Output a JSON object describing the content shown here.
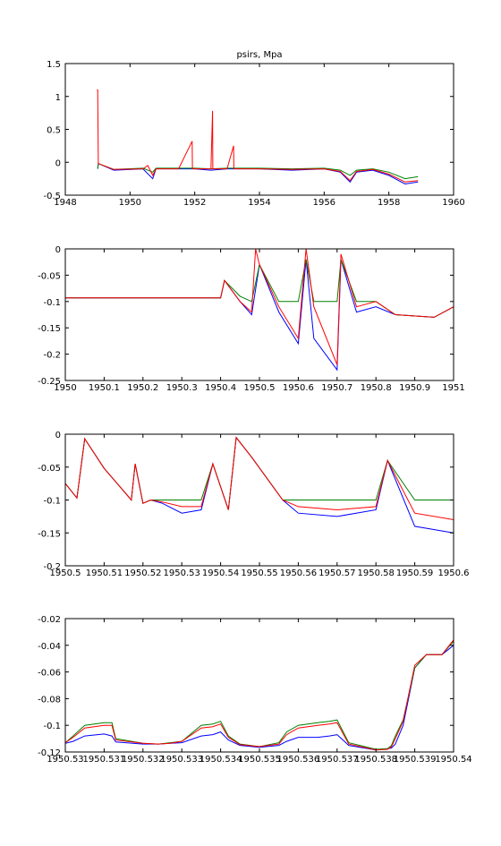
{
  "figure": {
    "title": "psirs, Mpa"
  },
  "colors": {
    "blue": "#0000ff",
    "green": "#008000",
    "red": "#ff0000",
    "axis": "#000000"
  },
  "chart_data": [
    {
      "type": "line",
      "title": "psirs, Mpa",
      "xlim": [
        1948,
        1960
      ],
      "ylim": [
        -0.5,
        1.5
      ],
      "xticks": [
        1948,
        1950,
        1952,
        1954,
        1956,
        1958,
        1960
      ],
      "xtick_labels": [
        "1948",
        "1950",
        "1952",
        "1954",
        "1956",
        "1958",
        "1960"
      ],
      "yticks": [
        -0.5,
        0,
        0.5,
        1,
        1.5
      ],
      "ytick_labels": [
        "-0.5",
        "0",
        "0.5",
        "1",
        "1.5"
      ],
      "series": [
        {
          "color": "blue",
          "x": [
            1949.0,
            1949.02,
            1949.5,
            1950.4,
            1950.7,
            1950.8,
            1951.5,
            1952.0,
            1952.5,
            1953.0,
            1954.0,
            1955.0,
            1956.0,
            1956.5,
            1956.8,
            1957.0,
            1957.5,
            1958.0,
            1958.5,
            1958.9
          ],
          "y": [
            -0.1,
            -0.02,
            -0.12,
            -0.1,
            -0.25,
            -0.1,
            -0.1,
            -0.1,
            -0.12,
            -0.1,
            -0.1,
            -0.12,
            -0.1,
            -0.15,
            -0.3,
            -0.15,
            -0.12,
            -0.2,
            -0.33,
            -0.3
          ]
        },
        {
          "color": "green",
          "x": [
            1949.0,
            1949.02,
            1949.5,
            1950.4,
            1950.7,
            1950.8,
            1951.5,
            1952.0,
            1952.5,
            1953.0,
            1954.0,
            1955.0,
            1956.0,
            1956.5,
            1956.8,
            1957.0,
            1957.5,
            1958.0,
            1958.5,
            1958.9
          ],
          "y": [
            -0.1,
            -0.02,
            -0.11,
            -0.09,
            -0.15,
            -0.09,
            -0.09,
            -0.09,
            -0.1,
            -0.09,
            -0.09,
            -0.1,
            -0.09,
            -0.12,
            -0.2,
            -0.12,
            -0.1,
            -0.15,
            -0.25,
            -0.22
          ]
        },
        {
          "color": "red",
          "x": [
            1948.98,
            1949.0,
            1949.02,
            1949.5,
            1950.4,
            1950.55,
            1950.7,
            1950.8,
            1951.5,
            1951.92,
            1951.93,
            1951.94,
            1952.5,
            1952.55,
            1952.56,
            1952.57,
            1953.0,
            1953.2,
            1953.21,
            1953.22,
            1954.0,
            1955.0,
            1956.0,
            1956.5,
            1956.8,
            1957.0,
            1957.5,
            1958.0,
            1958.5,
            1958.9
          ],
          "y": [
            1.1,
            1.1,
            -0.02,
            -0.11,
            -0.1,
            -0.05,
            -0.2,
            -0.1,
            -0.1,
            0.32,
            -0.1,
            -0.1,
            -0.1,
            0.78,
            -0.1,
            -0.1,
            -0.1,
            0.25,
            -0.1,
            -0.1,
            -0.1,
            -0.11,
            -0.1,
            -0.14,
            -0.28,
            -0.14,
            -0.11,
            -0.18,
            -0.3,
            -0.28
          ]
        }
      ]
    },
    {
      "type": "line",
      "xlim": [
        1950,
        1951
      ],
      "ylim": [
        -0.25,
        0
      ],
      "xticks": [
        1950,
        1950.1,
        1950.2,
        1950.3,
        1950.4,
        1950.5,
        1950.6,
        1950.7,
        1950.8,
        1950.9,
        1951
      ],
      "xtick_labels": [
        "1950",
        "1950.1",
        "1950.2",
        "1950.3",
        "1950.4",
        "1950.5",
        "1950.6",
        "1950.7",
        "1950.8",
        "1950.9",
        "1951"
      ],
      "yticks": [
        -0.25,
        -0.2,
        -0.15,
        -0.1,
        -0.05,
        0
      ],
      "ytick_labels": [
        "-0.25",
        "-0.2",
        "-0.15",
        "-0.1",
        "-0.05",
        "0"
      ],
      "series": [
        {
          "color": "blue",
          "x": [
            1950.0,
            1950.4,
            1950.41,
            1950.45,
            1950.48,
            1950.5,
            1950.55,
            1950.6,
            1950.62,
            1950.64,
            1950.7,
            1950.71,
            1950.75,
            1950.8,
            1950.85,
            1950.95,
            1951.0
          ],
          "y": [
            -0.093,
            -0.093,
            -0.06,
            -0.1,
            -0.125,
            -0.03,
            -0.12,
            -0.18,
            -0.02,
            -0.17,
            -0.23,
            -0.02,
            -0.12,
            -0.11,
            -0.125,
            -0.13,
            -0.11
          ]
        },
        {
          "color": "green",
          "x": [
            1950.0,
            1950.4,
            1950.41,
            1950.45,
            1950.48,
            1950.5,
            1950.55,
            1950.6,
            1950.62,
            1950.64,
            1950.7,
            1950.71,
            1950.75,
            1950.8,
            1950.85,
            1950.95,
            1951.0
          ],
          "y": [
            -0.093,
            -0.093,
            -0.06,
            -0.09,
            -0.1,
            -0.03,
            -0.1,
            -0.1,
            -0.02,
            -0.1,
            -0.1,
            -0.02,
            -0.1,
            -0.1,
            -0.125,
            -0.13,
            -0.11
          ]
        },
        {
          "color": "red",
          "x": [
            1950.0,
            1950.4,
            1950.41,
            1950.45,
            1950.48,
            1950.49,
            1950.5,
            1950.55,
            1950.6,
            1950.62,
            1950.64,
            1950.7,
            1950.71,
            1950.75,
            1950.8,
            1950.85,
            1950.95,
            1951.0
          ],
          "y": [
            -0.093,
            -0.093,
            -0.06,
            -0.1,
            -0.12,
            0,
            -0.03,
            -0.11,
            -0.17,
            0,
            -0.11,
            -0.22,
            -0.01,
            -0.11,
            -0.1,
            -0.125,
            -0.13,
            -0.11
          ]
        }
      ]
    },
    {
      "type": "line",
      "xlim": [
        1950.5,
        1950.6
      ],
      "ylim": [
        -0.2,
        0
      ],
      "xticks": [
        1950.5,
        1950.51,
        1950.52,
        1950.53,
        1950.54,
        1950.55,
        1950.56,
        1950.57,
        1950.58,
        1950.59,
        1950.6
      ],
      "xtick_labels": [
        "1950.5",
        "1950.51",
        "1950.52",
        "1950.53",
        "1950.54",
        "1950.55",
        "1950.56",
        "1950.57",
        "1950.58",
        "1950.59",
        "1950.6"
      ],
      "yticks": [
        -0.2,
        -0.15,
        -0.1,
        -0.05,
        0
      ],
      "ytick_labels": [
        "-0.2",
        "-0.15",
        "-0.1",
        "-0.05",
        "0"
      ],
      "series": [
        {
          "color": "blue",
          "x": [
            1950.5,
            1950.503,
            1950.505,
            1950.51,
            1950.517,
            1950.518,
            1950.52,
            1950.522,
            1950.525,
            1950.53,
            1950.535,
            1950.538,
            1950.542,
            1950.544,
            1950.548,
            1950.556,
            1950.56,
            1950.57,
            1950.58,
            1950.583,
            1950.59,
            1950.6
          ],
          "y": [
            -0.075,
            -0.097,
            -0.007,
            -0.052,
            -0.1,
            -0.045,
            -0.105,
            -0.1,
            -0.105,
            -0.12,
            -0.115,
            -0.045,
            -0.115,
            -0.005,
            -0.035,
            -0.1,
            -0.12,
            -0.125,
            -0.115,
            -0.04,
            -0.14,
            -0.15
          ]
        },
        {
          "color": "green",
          "x": [
            1950.5,
            1950.503,
            1950.505,
            1950.51,
            1950.517,
            1950.518,
            1950.52,
            1950.522,
            1950.525,
            1950.53,
            1950.535,
            1950.538,
            1950.542,
            1950.544,
            1950.548,
            1950.556,
            1950.56,
            1950.57,
            1950.58,
            1950.583,
            1950.59,
            1950.6
          ],
          "y": [
            -0.075,
            -0.097,
            -0.007,
            -0.052,
            -0.1,
            -0.045,
            -0.105,
            -0.1,
            -0.1,
            -0.1,
            -0.1,
            -0.045,
            -0.115,
            -0.005,
            -0.035,
            -0.1,
            -0.1,
            -0.1,
            -0.1,
            -0.04,
            -0.1,
            -0.1
          ]
        },
        {
          "color": "red",
          "x": [
            1950.5,
            1950.503,
            1950.505,
            1950.51,
            1950.517,
            1950.518,
            1950.52,
            1950.522,
            1950.525,
            1950.53,
            1950.535,
            1950.538,
            1950.542,
            1950.544,
            1950.548,
            1950.556,
            1950.56,
            1950.57,
            1950.58,
            1950.583,
            1950.59,
            1950.6
          ],
          "y": [
            -0.075,
            -0.097,
            -0.007,
            -0.052,
            -0.1,
            -0.045,
            -0.105,
            -0.1,
            -0.103,
            -0.11,
            -0.11,
            -0.045,
            -0.115,
            -0.005,
            -0.035,
            -0.1,
            -0.11,
            -0.115,
            -0.11,
            -0.04,
            -0.12,
            -0.13
          ]
        }
      ]
    },
    {
      "type": "line",
      "xlim": [
        1950.53,
        1950.54
      ],
      "ylim": [
        -0.12,
        -0.02
      ],
      "xticks": [
        1950.53,
        1950.531,
        1950.532,
        1950.533,
        1950.534,
        1950.535,
        1950.536,
        1950.537,
        1950.538,
        1950.539,
        1950.54
      ],
      "xtick_labels": [
        "1950.53",
        "1950.531",
        "1950.532",
        "1950.533",
        "1950.534",
        "1950.535",
        "1950.536",
        "1950.537",
        "1950.538",
        "1950.539",
        "1950.54"
      ],
      "yticks": [
        -0.12,
        -0.1,
        -0.08,
        -0.06,
        -0.04,
        -0.02
      ],
      "ytick_labels": [
        "-0.12",
        "-0.1",
        "-0.08",
        "-0.06",
        "-0.04",
        "-0.02"
      ],
      "series": [
        {
          "color": "blue",
          "x": [
            1950.53,
            1950.5302,
            1950.5305,
            1950.531,
            1950.5312,
            1950.5313,
            1950.532,
            1950.5324,
            1950.5327,
            1950.533,
            1950.5335,
            1950.5338,
            1950.534,
            1950.5342,
            1950.5345,
            1950.535,
            1950.5355,
            1950.5357,
            1950.536,
            1950.5365,
            1950.5368,
            1950.537,
            1950.5373,
            1950.538,
            1950.5383,
            1950.5384,
            1950.5385,
            1950.5387,
            1950.539,
            1950.5393,
            1950.5397,
            1950.54
          ],
          "y": [
            -0.1135,
            -0.112,
            -0.108,
            -0.1065,
            -0.108,
            -0.1125,
            -0.114,
            -0.114,
            -0.1135,
            -0.113,
            -0.108,
            -0.107,
            -0.105,
            -0.111,
            -0.115,
            -0.1165,
            -0.115,
            -0.112,
            -0.109,
            -0.109,
            -0.108,
            -0.107,
            -0.115,
            -0.1185,
            -0.1175,
            -0.117,
            -0.114,
            -0.1,
            -0.057,
            -0.047,
            -0.047,
            -0.04
          ]
        },
        {
          "color": "green",
          "x": [
            1950.53,
            1950.5302,
            1950.5305,
            1950.531,
            1950.5312,
            1950.5313,
            1950.532,
            1950.5324,
            1950.5327,
            1950.533,
            1950.5335,
            1950.5338,
            1950.534,
            1950.5342,
            1950.5345,
            1950.535,
            1950.5355,
            1950.5357,
            1950.536,
            1950.5365,
            1950.5368,
            1950.537,
            1950.5373,
            1950.538,
            1950.5383,
            1950.5384,
            1950.5385,
            1950.5387,
            1950.539,
            1950.5393,
            1950.5397,
            1950.54
          ],
          "y": [
            -0.113,
            -0.108,
            -0.1,
            -0.098,
            -0.098,
            -0.11,
            -0.1135,
            -0.114,
            -0.113,
            -0.112,
            -0.1,
            -0.099,
            -0.097,
            -0.108,
            -0.114,
            -0.116,
            -0.113,
            -0.105,
            -0.1,
            -0.098,
            -0.097,
            -0.096,
            -0.113,
            -0.118,
            -0.1175,
            -0.115,
            -0.108,
            -0.096,
            -0.057,
            -0.047,
            -0.047,
            -0.037
          ]
        },
        {
          "color": "red",
          "x": [
            1950.53,
            1950.5302,
            1950.5305,
            1950.531,
            1950.5312,
            1950.5313,
            1950.532,
            1950.5324,
            1950.5327,
            1950.533,
            1950.5335,
            1950.5338,
            1950.534,
            1950.5342,
            1950.5345,
            1950.535,
            1950.5355,
            1950.5357,
            1950.536,
            1950.5365,
            1950.5368,
            1950.537,
            1950.5373,
            1950.538,
            1950.5383,
            1950.5384,
            1950.5385,
            1950.5387,
            1950.539,
            1950.5393,
            1950.5397,
            1950.54
          ],
          "y": [
            -0.113,
            -0.109,
            -0.102,
            -0.1,
            -0.1,
            -0.111,
            -0.1135,
            -0.114,
            -0.1135,
            -0.112,
            -0.102,
            -0.101,
            -0.099,
            -0.109,
            -0.1145,
            -0.116,
            -0.114,
            -0.107,
            -0.102,
            -0.1,
            -0.099,
            -0.098,
            -0.114,
            -0.1185,
            -0.118,
            -0.116,
            -0.11,
            -0.097,
            -0.055,
            -0.047,
            -0.047,
            -0.036
          ]
        }
      ]
    }
  ]
}
